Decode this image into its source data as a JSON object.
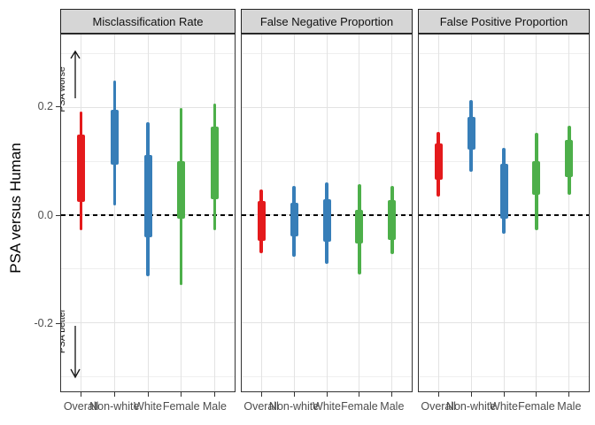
{
  "y_axis": {
    "title": "PSA versus Human",
    "tick_labels": [
      "0.2",
      "0.0",
      "-0.2"
    ]
  },
  "x_axis": {
    "categories": [
      "Overall",
      "Non-white",
      "White",
      "Female",
      "Male"
    ]
  },
  "annotations": {
    "up_label": "PSA worse",
    "down_label": "PSA better"
  },
  "colors": {
    "overall": "#E41A1C",
    "race": "#377EB8",
    "sex": "#4DAF4A",
    "strip_bg": "#D6D6D6",
    "panel_border": "#333333",
    "grid_major": "#E3E3E3",
    "grid_minor": "#EFEFEF",
    "axis_text": "#4D4D4D",
    "zero_line": "#000000"
  },
  "chart_data": {
    "type": "interval",
    "title": "",
    "ylabel": "PSA versus Human",
    "xlabel": "",
    "categories": [
      "Overall",
      "Non-white",
      "White",
      "Female",
      "Male"
    ],
    "ylim": [
      -0.327,
      0.335
    ],
    "major_breaks": [
      -0.2,
      0.0,
      0.2
    ],
    "minor_breaks": [
      -0.3,
      -0.1,
      0.1,
      0.3
    ],
    "zero_line": 0.0,
    "legend": "none",
    "facets": [
      {
        "title": "Misclassification Rate",
        "intervals": [
          {
            "category": "Overall",
            "color": "#E41A1C",
            "outer": [
              -0.028,
              0.192
            ],
            "inner": [
              0.025,
              0.15
            ]
          },
          {
            "category": "Non-white",
            "color": "#377EB8",
            "outer": [
              0.018,
              0.25
            ],
            "inner": [
              0.093,
              0.195
            ]
          },
          {
            "category": "White",
            "color": "#377EB8",
            "outer": [
              -0.113,
              0.172
            ],
            "inner": [
              -0.041,
              0.111
            ]
          },
          {
            "category": "Female",
            "color": "#4DAF4A",
            "outer": [
              -0.13,
              0.198
            ],
            "inner": [
              -0.006,
              0.1
            ]
          },
          {
            "category": "Male",
            "color": "#4DAF4A",
            "outer": [
              -0.028,
              0.207
            ],
            "inner": [
              0.03,
              0.164
            ]
          }
        ]
      },
      {
        "title": "False Negative Proportion",
        "intervals": [
          {
            "category": "Overall",
            "color": "#E41A1C",
            "outer": [
              -0.071,
              0.047
            ],
            "inner": [
              -0.047,
              0.026
            ]
          },
          {
            "category": "Non-white",
            "color": "#377EB8",
            "outer": [
              -0.077,
              0.054
            ],
            "inner": [
              -0.039,
              0.023
            ]
          },
          {
            "category": "White",
            "color": "#377EB8",
            "outer": [
              -0.091,
              0.061
            ],
            "inner": [
              -0.05,
              0.029
            ]
          },
          {
            "category": "Female",
            "color": "#4DAF4A",
            "outer": [
              -0.11,
              0.058
            ],
            "inner": [
              -0.053,
              0.01
            ]
          },
          {
            "category": "Male",
            "color": "#4DAF4A",
            "outer": [
              -0.073,
              0.054
            ],
            "inner": [
              -0.046,
              0.028
            ]
          }
        ]
      },
      {
        "title": "False Positive Proportion",
        "intervals": [
          {
            "category": "Overall",
            "color": "#E41A1C",
            "outer": [
              0.035,
              0.155
            ],
            "inner": [
              0.065,
              0.133
            ]
          },
          {
            "category": "Non-white",
            "color": "#377EB8",
            "outer": [
              0.081,
              0.213
            ],
            "inner": [
              0.122,
              0.182
            ]
          },
          {
            "category": "White",
            "color": "#377EB8",
            "outer": [
              -0.034,
              0.125
            ],
            "inner": [
              -0.006,
              0.095
            ]
          },
          {
            "category": "Female",
            "color": "#4DAF4A",
            "outer": [
              -0.028,
              0.152
            ],
            "inner": [
              0.037,
              0.1
            ]
          },
          {
            "category": "Male",
            "color": "#4DAF4A",
            "outer": [
              0.037,
              0.166
            ],
            "inner": [
              0.07,
              0.14
            ]
          }
        ]
      }
    ]
  }
}
